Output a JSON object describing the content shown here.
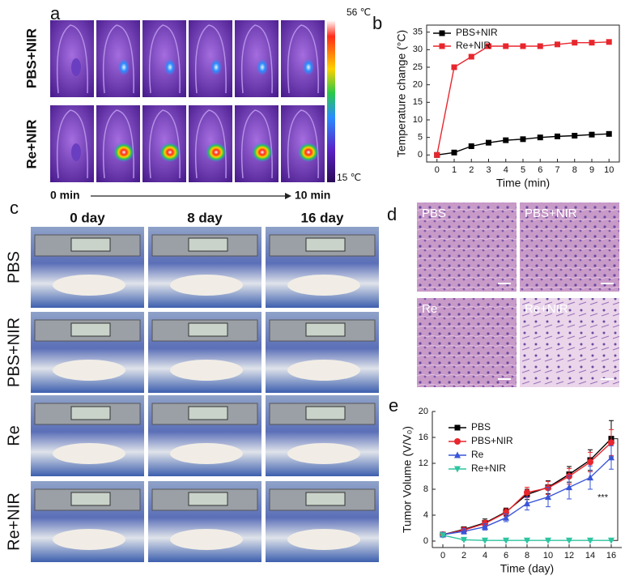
{
  "panel_a": {
    "label": "a",
    "rows": [
      "PBS+NIR",
      "Re+NIR"
    ],
    "scale_max": "56 ℃",
    "scale_min": "15 ℃",
    "start": "0 min",
    "end": "10 min"
  },
  "panel_c": {
    "label": "c",
    "columns": [
      "0 day",
      "8 day",
      "16 day"
    ],
    "rows": [
      "PBS",
      "PBS+NIR",
      "Re",
      "Re+NIR"
    ]
  },
  "panel_d": {
    "label": "d",
    "images": [
      "PBS",
      "PBS+NIR",
      "Re",
      "Re+NIR"
    ]
  },
  "chart_data": [
    {
      "type": "line",
      "label": "b",
      "xlabel": "Time (min)",
      "ylabel": "Temperature change (°C)",
      "x": [
        0,
        1,
        2,
        3,
        4,
        5,
        6,
        7,
        8,
        9,
        10
      ],
      "series": [
        {
          "name": "PBS+NIR",
          "color": "#000000",
          "marker": "square",
          "values": [
            0,
            0.7,
            2.5,
            3.5,
            4.2,
            4.5,
            5,
            5.3,
            5.5,
            5.8,
            6
          ]
        },
        {
          "name": "Re+NIR",
          "color": "#e8262d",
          "marker": "square",
          "values": [
            0,
            25,
            28,
            31,
            31,
            31,
            31,
            31.5,
            32,
            32,
            32.2
          ]
        }
      ],
      "xlim": [
        -0.6,
        10.6
      ],
      "xticks": [
        0,
        1,
        2,
        3,
        4,
        5,
        6,
        7,
        8,
        9,
        10
      ],
      "ylim": [
        -2,
        37
      ],
      "yticks": [
        0,
        5,
        10,
        15,
        20,
        25,
        30,
        35
      ],
      "legend": "upper left"
    },
    {
      "type": "line",
      "label": "e",
      "xlabel": "Time (day)",
      "ylabel": "Tumor Volume (V/V₀)",
      "annotation": "***",
      "x": [
        0,
        2,
        4,
        6,
        8,
        10,
        12,
        14,
        16
      ],
      "series": [
        {
          "name": "PBS",
          "color": "#000000",
          "marker": "square",
          "values": [
            1,
            1.8,
            2.8,
            4.5,
            7.2,
            8.3,
            10.3,
            12.5,
            15.8
          ],
          "errors": [
            0.3,
            0.4,
            0.6,
            0.6,
            0.8,
            1,
            1.2,
            1.6,
            2.8
          ]
        },
        {
          "name": "PBS+NIR",
          "color": "#e8262d",
          "marker": "circle",
          "values": [
            1,
            1.7,
            2.7,
            4.4,
            7.5,
            8.2,
            10,
            12.2,
            15.2
          ],
          "errors": [
            0.3,
            0.4,
            0.5,
            0.6,
            0.8,
            1,
            1.2,
            1.5,
            2
          ]
        },
        {
          "name": "Re",
          "color": "#3a55d8",
          "marker": "triangle-up",
          "values": [
            1,
            1.5,
            2.2,
            3.6,
            5.8,
            6.8,
            8.3,
            9.8,
            12.9
          ],
          "errors": [
            0.3,
            0.4,
            0.5,
            0.6,
            1,
            1.5,
            1.8,
            1.8,
            1.8
          ]
        },
        {
          "name": "Re+NIR",
          "color": "#2ec4a0",
          "marker": "triangle-down",
          "values": [
            0.9,
            0.2,
            0.1,
            0.1,
            0.1,
            0.1,
            0.1,
            0.1,
            0.1
          ],
          "errors": [
            0.1,
            0.1,
            0.05,
            0.05,
            0.05,
            0.05,
            0.05,
            0.05,
            0.05
          ]
        }
      ],
      "xlim": [
        -1,
        17
      ],
      "xticks": [
        0,
        2,
        4,
        6,
        8,
        10,
        12,
        14,
        16
      ],
      "ylim": [
        -1,
        20
      ],
      "yticks": [
        0,
        4,
        8,
        12,
        16,
        20
      ],
      "legend": "upper left"
    }
  ]
}
